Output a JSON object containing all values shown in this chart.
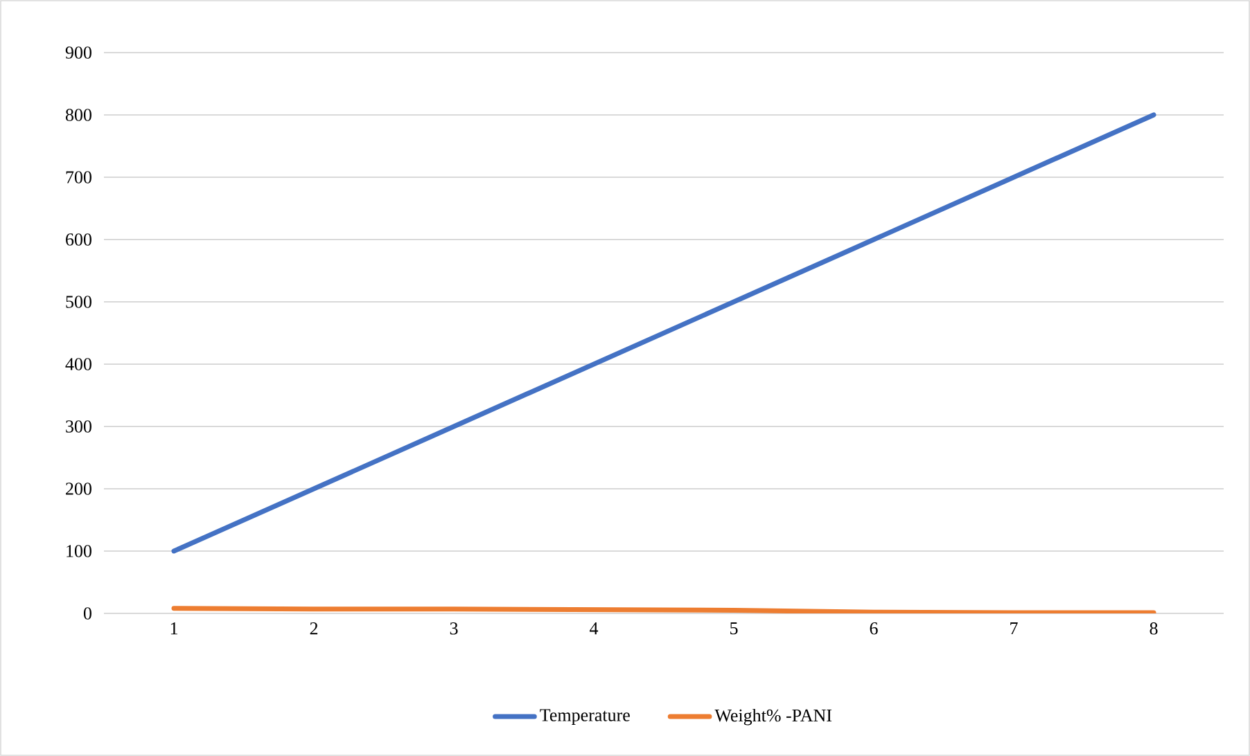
{
  "chart_data": {
    "type": "line",
    "categories": [
      "1",
      "2",
      "3",
      "4",
      "5",
      "6",
      "7",
      "8"
    ],
    "series": [
      {
        "name": "Temperature",
        "color": "#4472c4",
        "values": [
          100,
          200,
          300,
          400,
          500,
          600,
          700,
          800
        ]
      },
      {
        "name": "Weight% -PANI",
        "color": "#ed7d31",
        "values": [
          8,
          7,
          7,
          6,
          5,
          2,
          1,
          1
        ]
      }
    ],
    "ylim": [
      0,
      900
    ],
    "yticks": [
      0,
      100,
      200,
      300,
      400,
      500,
      600,
      700,
      800,
      900
    ],
    "grid": "y",
    "legend": "bottom",
    "marker": "none",
    "line_style": "solid"
  }
}
